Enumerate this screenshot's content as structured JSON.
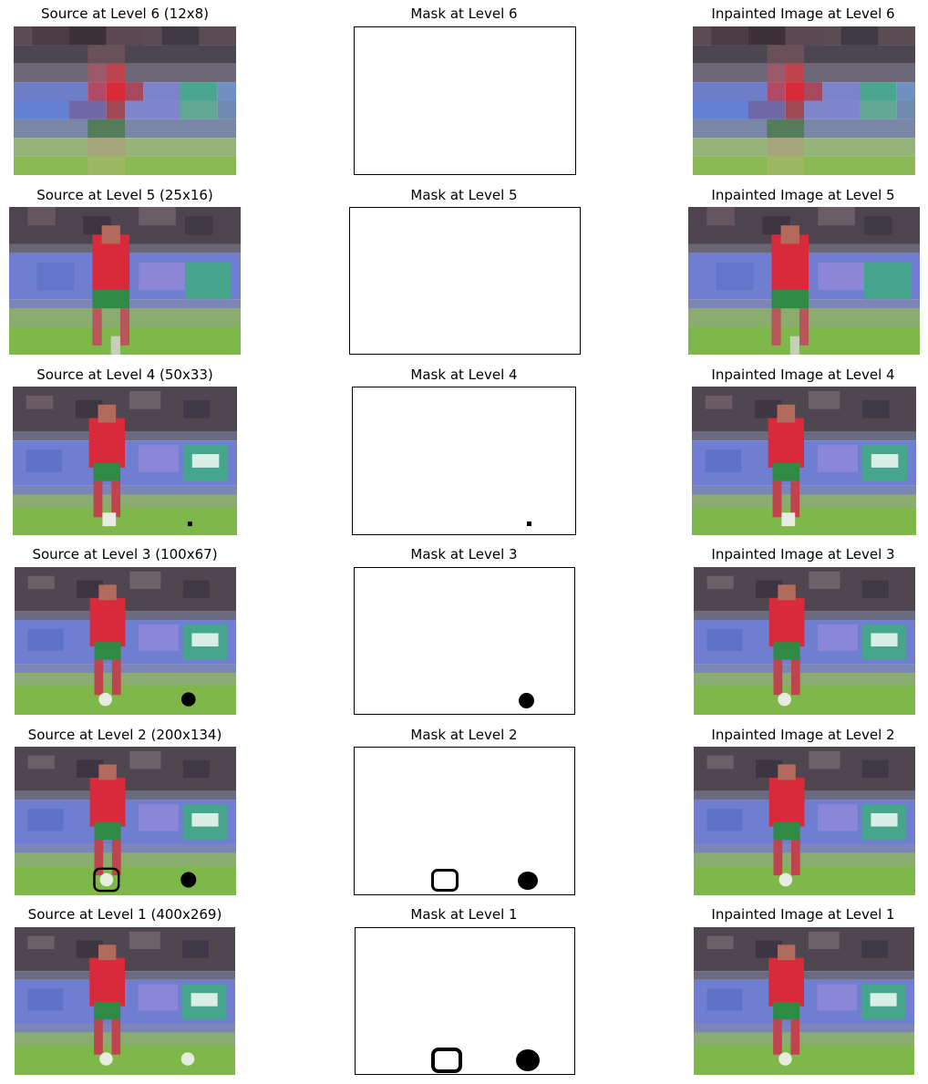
{
  "figure": {
    "rows": [
      {
        "source_title": "Source at Level 6 (12x8)",
        "mask_title": "Mask at Level 6",
        "inpaint_title": "Inpainted Image at Level 6"
      },
      {
        "source_title": "Source at Level 5 (25x16)",
        "mask_title": "Mask at Level 5",
        "inpaint_title": "Inpainted Image at Level 5"
      },
      {
        "source_title": "Source at Level 4 (50x33)",
        "mask_title": "Mask at Level 4",
        "inpaint_title": "Inpainted Image at Level 4"
      },
      {
        "source_title": "Source at Level 3 (100x67)",
        "mask_title": "Mask at Level 3",
        "inpaint_title": "Inpainted Image at Level 3"
      },
      {
        "source_title": "Source at Level 2 (200x134)",
        "mask_title": "Mask at Level 2",
        "inpaint_title": "Inpainted Image at Level 2"
      },
      {
        "source_title": "Source at Level 1 (400x269)",
        "mask_title": "Mask at Level 1",
        "inpaint_title": "Inpainted Image at Level 1"
      }
    ]
  },
  "colors": {
    "grass": "#7fb84a",
    "grass_dark": "#6aa23c",
    "crowd_dark": "#4a4048",
    "crowd_mid": "#6c6470",
    "banner_blue": "#6f7fd6",
    "banner_purple": "#7a6ab8",
    "banner_teal": "#4aa68e",
    "jersey_red": "#d82a3a",
    "shorts_green": "#2f8a44",
    "mask_fill": "#000000"
  }
}
